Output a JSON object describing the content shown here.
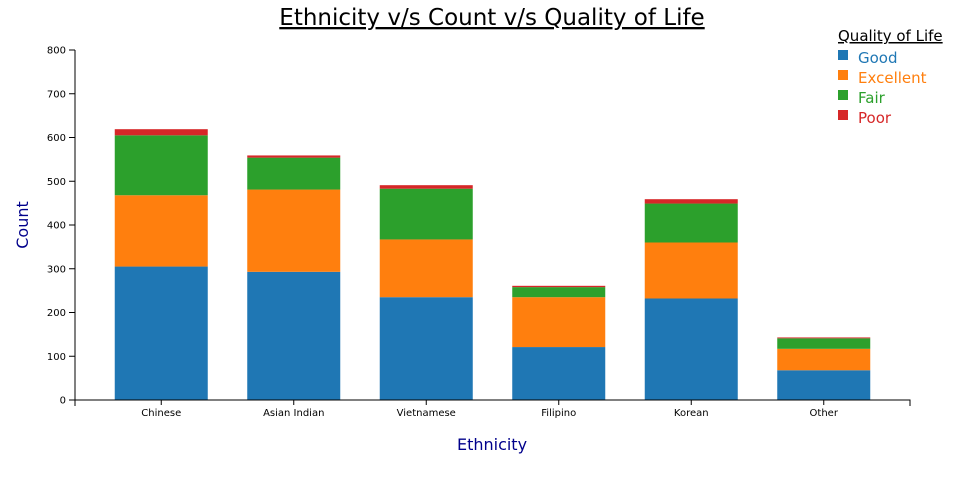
{
  "chart_data": {
    "type": "bar",
    "stacked": true,
    "title": "Ethnicity v/s Count v/s Quality of Life",
    "xlabel": "Ethnicity",
    "ylabel": "Count",
    "ylim": [
      0,
      800
    ],
    "yticks": [
      0,
      100,
      200,
      300,
      400,
      500,
      600,
      700,
      800
    ],
    "categories": [
      "Chinese",
      "Asian Indian",
      "Vietnamese",
      "Filipino",
      "Korean",
      "Other"
    ],
    "legend_title": "Quality of Life",
    "legend_position": "top-right",
    "series": [
      {
        "name": "Good",
        "color": "#1f77b4",
        "values": [
          305,
          293,
          235,
          121,
          232,
          68
        ]
      },
      {
        "name": "Excellent",
        "color": "#ff7f0e",
        "values": [
          163,
          188,
          132,
          114,
          128,
          49
        ]
      },
      {
        "name": "Fair",
        "color": "#2ca02c",
        "values": [
          137,
          73,
          116,
          23,
          89,
          24
        ]
      },
      {
        "name": "Poor",
        "color": "#d62728",
        "values": [
          14,
          5,
          8,
          3,
          10,
          2
        ]
      }
    ]
  }
}
